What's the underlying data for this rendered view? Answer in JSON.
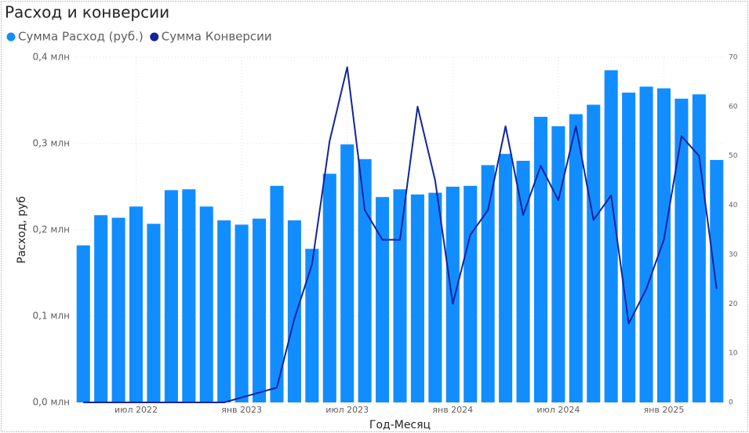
{
  "chart_data": {
    "type": "bar-line",
    "title": "Расход и конверсии",
    "x_label": "Год-Месяц",
    "y_label": "Расход, руб",
    "categories": [
      null,
      null,
      null,
      "июл 2022",
      null,
      null,
      null,
      null,
      null,
      "янв 2023",
      null,
      null,
      null,
      null,
      null,
      "июл 2023",
      null,
      null,
      null,
      null,
      null,
      "янв 2024",
      null,
      null,
      null,
      null,
      null,
      "июл 2024",
      null,
      null,
      null,
      null,
      null,
      "янв 2025",
      null,
      null,
      null
    ],
    "series": [
      {
        "name": "Сумма Расход (руб.)",
        "color": "#118dff",
        "kind": "bar",
        "values": [
          0.182,
          0.217,
          0.214,
          0.227,
          0.207,
          0.246,
          0.247,
          0.227,
          0.211,
          0.206,
          0.213,
          0.251,
          0.211,
          0.178,
          0.265,
          0.299,
          0.282,
          0.238,
          0.247,
          0.241,
          0.243,
          0.25,
          0.251,
          0.275,
          0.288,
          0.28,
          0.331,
          0.32,
          0.334,
          0.345,
          0.385,
          0.359,
          0.366,
          0.364,
          0.352,
          0.357,
          0.281
        ]
      },
      {
        "name": "Сумма Конверсии",
        "color": "#12239e",
        "kind": "line",
        "axis": "y2",
        "values": [
          0,
          0,
          0,
          0,
          0,
          0,
          0,
          0,
          0,
          1,
          2,
          3,
          17,
          28,
          53,
          68,
          39,
          33,
          33,
          60,
          45,
          20,
          34,
          39,
          56,
          38,
          48,
          41,
          56,
          37,
          42,
          16,
          23,
          33,
          54,
          50,
          23
        ]
      }
    ],
    "ylim": [
      0,
      0.4
    ],
    "yticks": [
      {
        "value": 0,
        "label": "0,0 млн"
      },
      {
        "value": 0.1,
        "label": "0,1 млн"
      },
      {
        "value": 0.2,
        "label": "0,2 млн"
      },
      {
        "value": 0.3,
        "label": "0,3 млн"
      },
      {
        "value": 0.4,
        "label": "0,4 млн"
      }
    ],
    "y2lim": [
      0,
      70
    ],
    "y2ticks": [
      0,
      10,
      20,
      30,
      40,
      50,
      60,
      70
    ],
    "grid": true
  }
}
